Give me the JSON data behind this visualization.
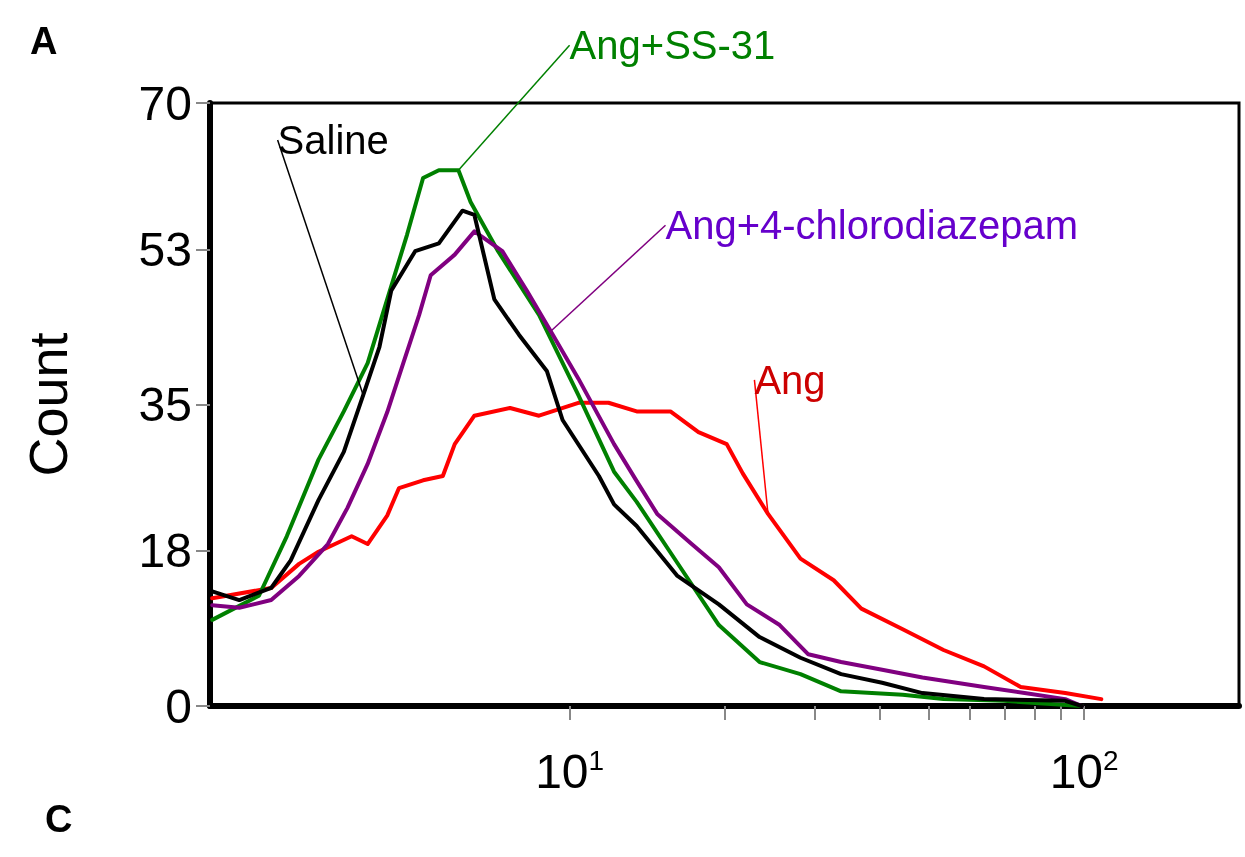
{
  "chart_data": {
    "type": "line",
    "ylabel": "Count",
    "annotations": [
      "A",
      "C"
    ],
    "xlim": [
      2,
      200
    ],
    "xticks": [
      {
        "value": 10,
        "label": "10$^{1}$"
      },
      {
        "value": 20,
        "label": null
      },
      {
        "value": 30,
        "label": null
      },
      {
        "value": 40,
        "label": null
      },
      {
        "value": 50,
        "label": null
      },
      {
        "value": 60,
        "label": null
      },
      {
        "value": 70,
        "label": null
      },
      {
        "value": 80,
        "label": null
      },
      {
        "value": 90,
        "label": null
      },
      {
        "value": 100,
        "label": "10$^{2}$"
      }
    ],
    "log": "x",
    "ylim": [
      0,
      70
    ],
    "yticks": [
      0,
      18,
      35,
      53,
      70
    ],
    "marker": "none",
    "line_style": "solid",
    "series": [
      {
        "name": "Ang",
        "color": "#ff0000",
        "x": [
          2.02,
          2.63,
          2.98,
          3.25,
          3.77,
          4.05,
          4.42,
          4.66,
          5.19,
          5.67,
          5.98,
          6.53,
          7.66,
          8.72,
          10.4,
          11.9,
          13.5,
          15.7,
          17.8,
          20.2,
          21.7,
          24.3,
          28.1,
          32.6,
          36.9,
          44.4,
          53.3,
          63.9,
          75.3,
          91.9,
          108
        ],
        "values": [
          12.5,
          13.7,
          16.5,
          17.9,
          19.7,
          18.8,
          22.1,
          25.3,
          26.2,
          26.7,
          30.4,
          33.7,
          34.6,
          33.7,
          35.2,
          35.2,
          34.2,
          34.2,
          31.8,
          30.4,
          27.0,
          22.3,
          17.1,
          14.6,
          11.3,
          8.9,
          6.5,
          4.6,
          2.2,
          1.5,
          0.8
        ]
      },
      {
        "name": "Ang+SS-31",
        "color": "#008000",
        "x": [
          2.02,
          2.49,
          2.82,
          3.25,
          3.64,
          4.05,
          4.42,
          4.83,
          5.19,
          5.57,
          6.08,
          6.42,
          7.26,
          8.72,
          10.4,
          12.2,
          13.5,
          16.2,
          19.5,
          23.4,
          28.1,
          33.7,
          44.4,
          53.3,
          69.8,
          99
        ],
        "values": [
          10,
          12.8,
          19.7,
          28.6,
          34.2,
          39.8,
          47.2,
          54.7,
          61.3,
          62.2,
          62.2,
          58.5,
          52.8,
          45.4,
          36.1,
          27.2,
          23.7,
          16.6,
          9.4,
          5.1,
          3.7,
          1.7,
          1.3,
          0.8,
          0.6,
          0
        ]
      },
      {
        "name": "Ang+4-chlorodiazepam",
        "color": "#800080",
        "x": [
          2.02,
          2.28,
          2.63,
          2.98,
          3.39,
          3.7,
          4.05,
          4.42,
          4.75,
          5.1,
          5.37,
          5.98,
          6.53,
          7.4,
          8.26,
          9.19,
          10.4,
          12.2,
          13.5,
          14.8,
          17.2,
          19.5,
          22.1,
          25.6,
          29.1,
          33.7,
          40.5,
          48.5,
          63.9,
          76.6,
          91.9,
          99
        ],
        "values": [
          11.7,
          11.4,
          12.3,
          15.1,
          18.8,
          23.0,
          28.1,
          34.1,
          39.8,
          45.4,
          50.0,
          52.4,
          55.1,
          52.8,
          48.2,
          43.5,
          38.0,
          30.4,
          26.1,
          22.3,
          18.9,
          16.1,
          11.8,
          9.4,
          6.0,
          5.1,
          4.2,
          3.3,
          2.2,
          1.5,
          0.8,
          0
        ]
      },
      {
        "name": "Saline",
        "color": "#000000",
        "x": [
          2.02,
          2.28,
          2.63,
          2.87,
          3.25,
          3.64,
          3.97,
          4.27,
          4.5,
          5.01,
          5.57,
          6.19,
          6.53,
          7.14,
          7.97,
          9.03,
          9.69,
          11.4,
          12.2,
          13.5,
          16.2,
          19.5,
          23.4,
          28.1,
          33.7,
          40.5,
          48.5,
          63.9,
          91.9,
          99
        ],
        "values": [
          13.3,
          12.3,
          13.7,
          16.9,
          23.9,
          29.5,
          36.1,
          41.7,
          48.2,
          52.8,
          53.7,
          57.5,
          57.0,
          47.2,
          43.1,
          38.9,
          33.2,
          26.7,
          23.4,
          20.9,
          15.1,
          11.8,
          8.0,
          5.6,
          3.7,
          2.7,
          1.5,
          0.8,
          0.6,
          0
        ]
      }
    ]
  }
}
